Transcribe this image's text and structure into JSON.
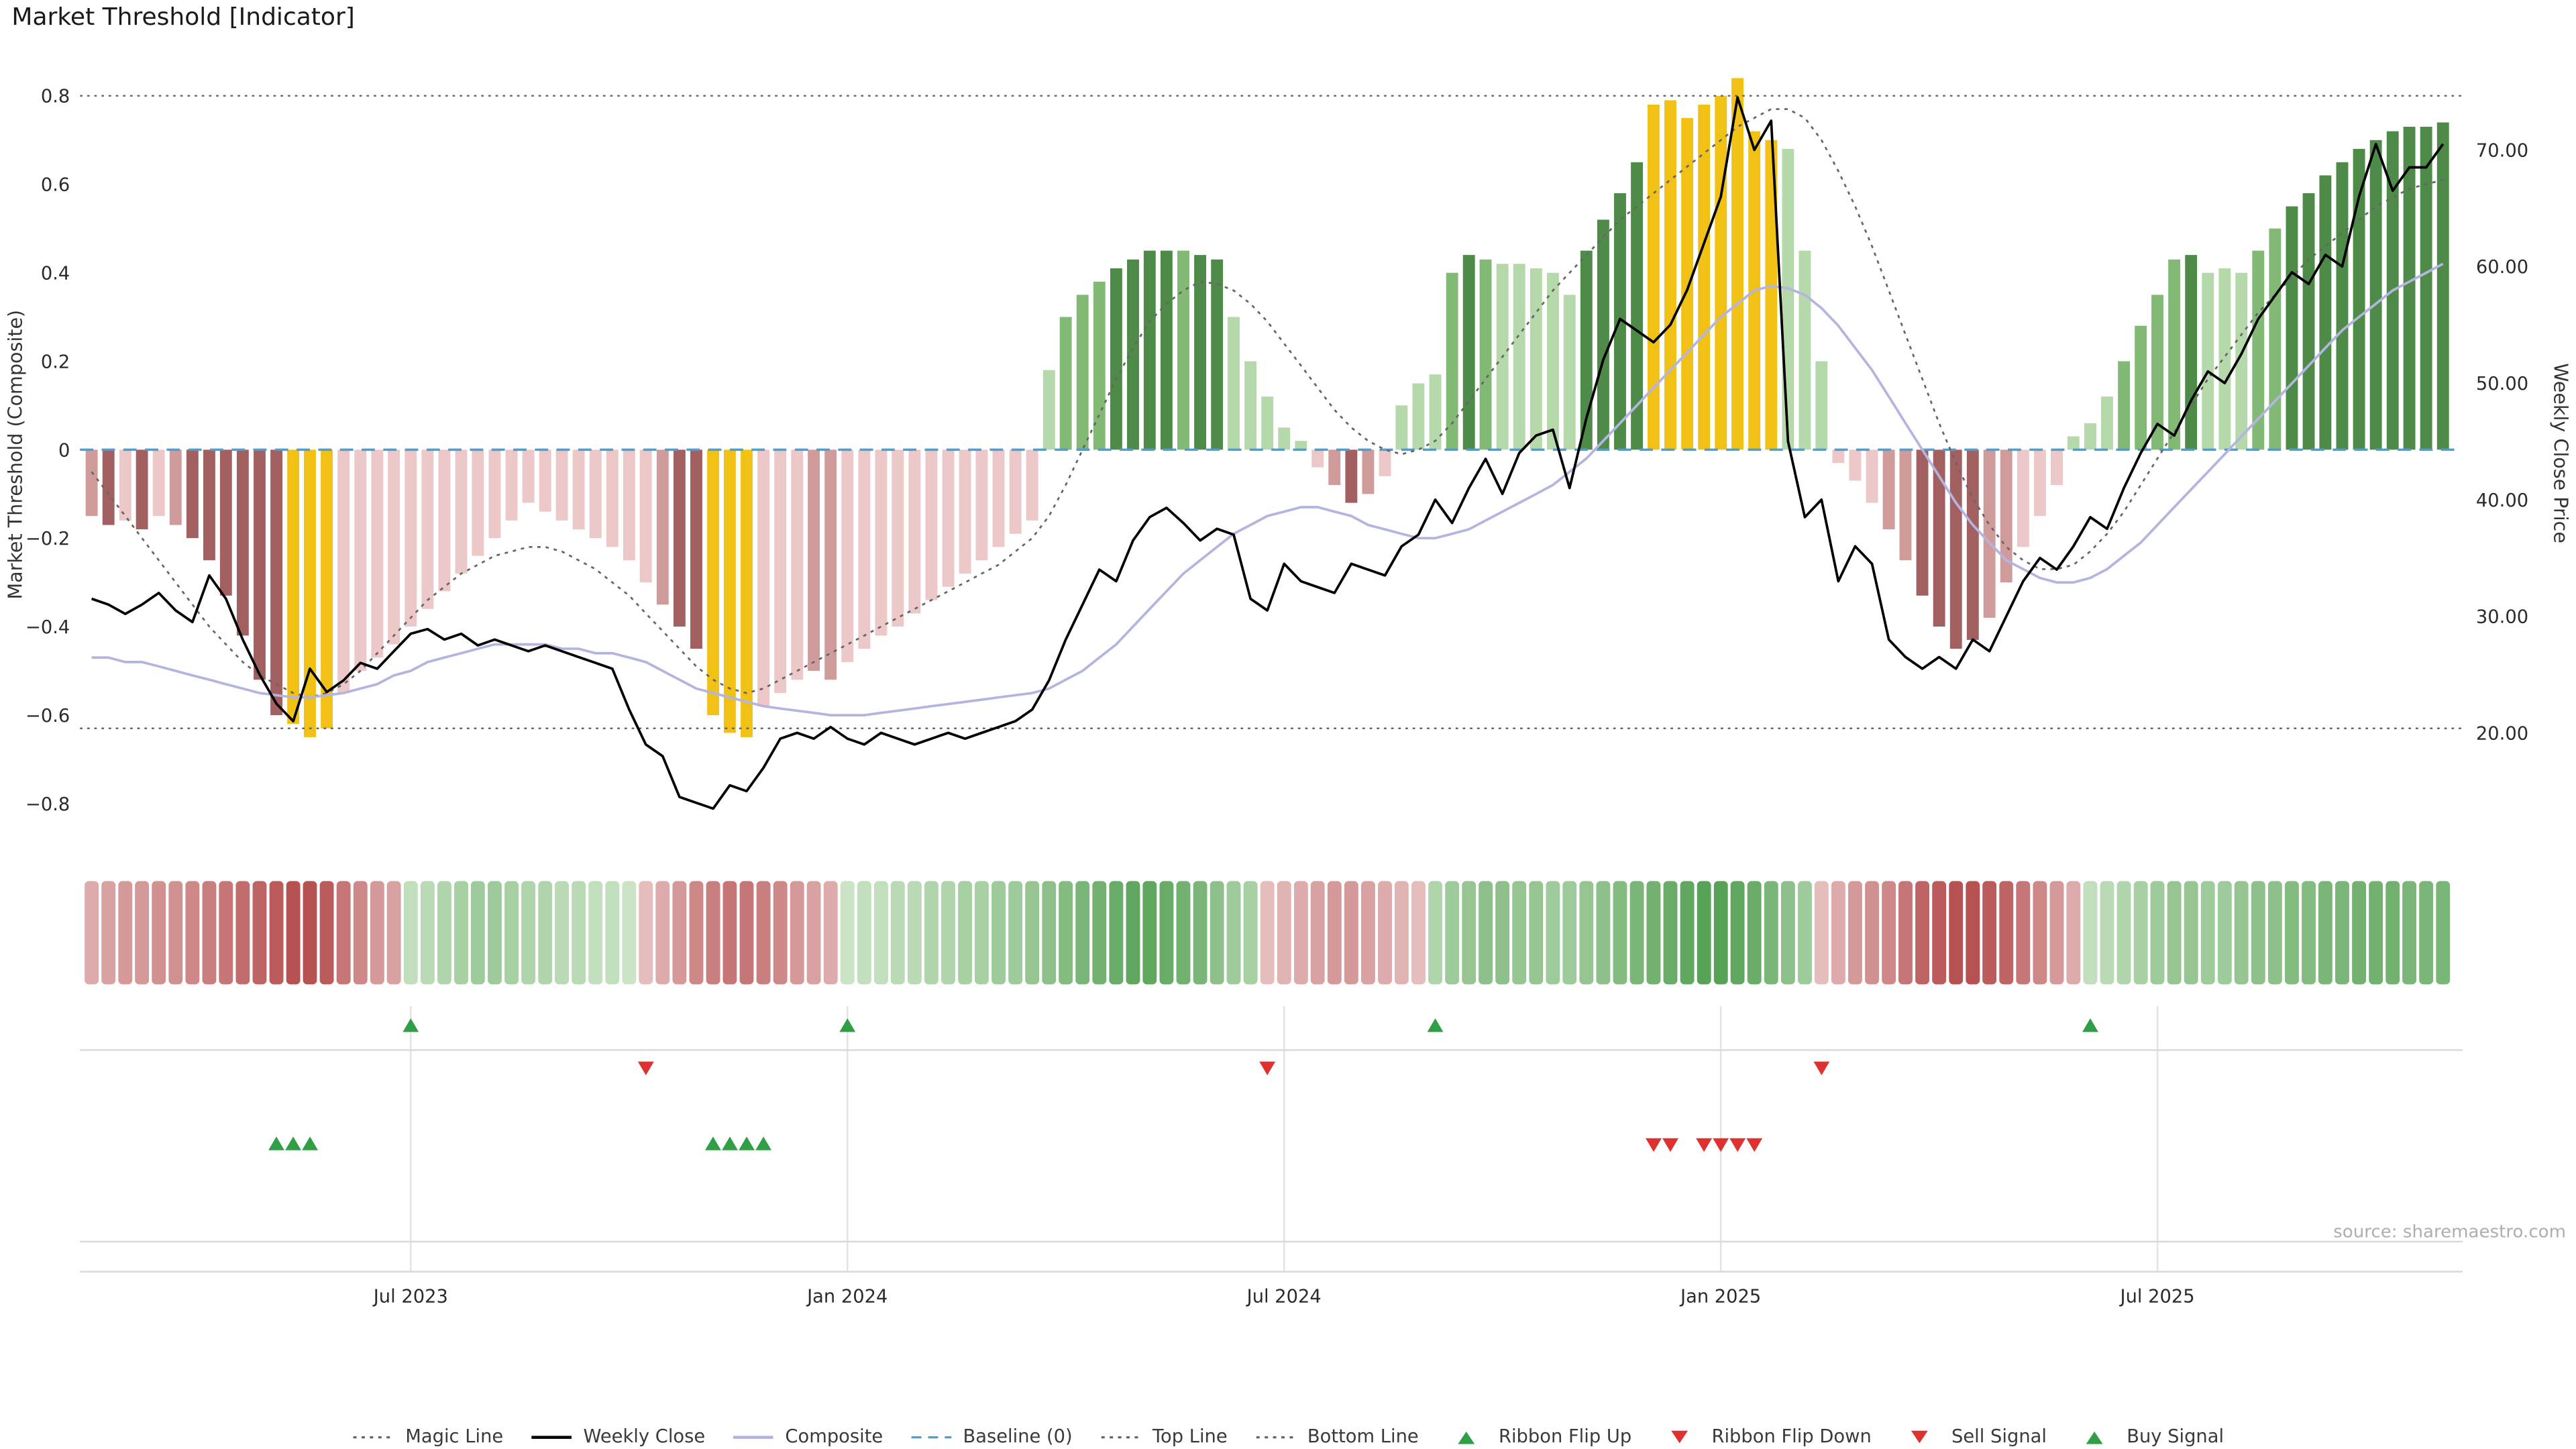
{
  "title": "Market Threshold [Indicator]",
  "source_note": "source: sharemaestro.com",
  "axes": {
    "left_label": "Market Threshold (Composite)",
    "right_label": "Weekly Close Price",
    "left_ticks": [
      {
        "v": 0.8,
        "label": "0.8"
      },
      {
        "v": 0.6,
        "label": "0.6"
      },
      {
        "v": 0.4,
        "label": "0.4"
      },
      {
        "v": 0.2,
        "label": "0.2"
      },
      {
        "v": 0.0,
        "label": "0"
      },
      {
        "v": -0.2,
        "label": "−0.2"
      },
      {
        "v": -0.4,
        "label": "−0.4"
      },
      {
        "v": -0.6,
        "label": "−0.6"
      },
      {
        "v": -0.8,
        "label": "−0.8"
      }
    ],
    "right_ticks": [
      {
        "v": 70,
        "label": "70.00"
      },
      {
        "v": 60,
        "label": "60.00"
      },
      {
        "v": 50,
        "label": "50.00"
      },
      {
        "v": 40,
        "label": "40.00"
      },
      {
        "v": 30,
        "label": "30.00"
      },
      {
        "v": 20,
        "label": "20.00"
      }
    ],
    "x_ticks": [
      {
        "week_index": 19,
        "label": "Jul 2023"
      },
      {
        "week_index": 45,
        "label": "Jan 2024"
      },
      {
        "week_index": 71,
        "label": "Jul 2024"
      },
      {
        "week_index": 97,
        "label": "Jan 2025"
      },
      {
        "week_index": 123,
        "label": "Jul 2025"
      }
    ]
  },
  "colors": {
    "bar_classes": {
      "dr": "#a26060",
      "mr": "#cf9b9b",
      "lr": "#ecc8c8",
      "y": "#f2c115",
      "lg": "#b5d9ab",
      "mg": "#82b974",
      "dg": "#4e8b49"
    },
    "magic_line": "#666666",
    "weekly_close": "#000000",
    "composite": "#b3b5e0",
    "baseline": "#4a9fd4",
    "top_line": "#666666",
    "bottom_line": "#666666",
    "signal_up": "#2f9e44",
    "signal_down": "#e03131",
    "ribbon_red_light": "#f0d8d8",
    "ribbon_red_dark": "#b75252",
    "ribbon_green_light": "#ddeed6",
    "ribbon_green_dark": "#57a257",
    "grid_line": "#d9d9d9",
    "tick_text": "#2b2b2b"
  },
  "chart_data": {
    "type": "mixed-bar-line",
    "frequency": "weekly",
    "n_weeks": 141,
    "left_axis_range": [
      -0.9,
      0.9
    ],
    "right_axis_range": [
      13,
      77
    ],
    "reference_lines": {
      "top_line": 0.8,
      "bottom_line": -0.63,
      "baseline": 0
    },
    "series": {
      "threshold_bars": {
        "name": "Market Threshold",
        "values": [
          -0.15,
          -0.17,
          -0.16,
          -0.18,
          -0.15,
          -0.17,
          -0.2,
          -0.25,
          -0.33,
          -0.42,
          -0.52,
          -0.6,
          -0.62,
          -0.65,
          -0.63,
          -0.55,
          -0.5,
          -0.47,
          -0.44,
          -0.4,
          -0.36,
          -0.32,
          -0.28,
          -0.24,
          -0.2,
          -0.16,
          -0.12,
          -0.14,
          -0.16,
          -0.18,
          -0.2,
          -0.22,
          -0.25,
          -0.3,
          -0.35,
          -0.4,
          -0.45,
          -0.6,
          -0.64,
          -0.65,
          -0.58,
          -0.55,
          -0.52,
          -0.5,
          -0.52,
          -0.48,
          -0.45,
          -0.42,
          -0.4,
          -0.37,
          -0.34,
          -0.31,
          -0.28,
          -0.25,
          -0.22,
          -0.19,
          -0.16,
          0.18,
          0.3,
          0.35,
          0.38,
          0.41,
          0.43,
          0.45,
          0.45,
          0.45,
          0.44,
          0.43,
          0.3,
          0.2,
          0.12,
          0.05,
          0.02,
          -0.04,
          -0.08,
          -0.12,
          -0.1,
          -0.06,
          0.1,
          0.15,
          0.17,
          0.4,
          0.44,
          0.43,
          0.42,
          0.42,
          0.41,
          0.4,
          0.35,
          0.45,
          0.52,
          0.58,
          0.65,
          0.78,
          0.79,
          0.75,
          0.78,
          0.8,
          0.84,
          0.72,
          0.7,
          0.68,
          0.45,
          0.2,
          -0.03,
          -0.07,
          -0.12,
          -0.18,
          -0.25,
          -0.33,
          -0.4,
          -0.45,
          -0.43,
          -0.38,
          -0.3,
          -0.22,
          -0.15,
          -0.08,
          0.03,
          0.06,
          0.12,
          0.2,
          0.28,
          0.35,
          0.43,
          0.44,
          0.4,
          0.41,
          0.4,
          0.45,
          0.5,
          0.55,
          0.58,
          0.62,
          0.65,
          0.68,
          0.7,
          0.72,
          0.73,
          0.73,
          0.74
        ],
        "color_class": [
          "mr",
          "dr",
          "lr",
          "dr",
          "lr",
          "mr",
          "dr",
          "dr",
          "dr",
          "dr",
          "dr",
          "dr",
          "y",
          "y",
          "y",
          "lr",
          "lr",
          "lr",
          "lr",
          "lr",
          "lr",
          "lr",
          "lr",
          "lr",
          "lr",
          "lr",
          "lr",
          "lr",
          "lr",
          "lr",
          "lr",
          "lr",
          "lr",
          "lr",
          "mr",
          "dr",
          "dr",
          "y",
          "y",
          "y",
          "lr",
          "lr",
          "lr",
          "mr",
          "mr",
          "lr",
          "lr",
          "lr",
          "lr",
          "lr",
          "lr",
          "lr",
          "lr",
          "lr",
          "lr",
          "lr",
          "lr",
          "lg",
          "mg",
          "mg",
          "mg",
          "dg",
          "dg",
          "dg",
          "dg",
          "mg",
          "dg",
          "dg",
          "lg",
          "lg",
          "lg",
          "lg",
          "lg",
          "lr",
          "mr",
          "dr",
          "mr",
          "lr",
          "lg",
          "lg",
          "lg",
          "mg",
          "dg",
          "mg",
          "lg",
          "lg",
          "lg",
          "lg",
          "lg",
          "dg",
          "dg",
          "dg",
          "dg",
          "y",
          "y",
          "y",
          "y",
          "y",
          "y",
          "y",
          "y",
          "lg",
          "lg",
          "lg",
          "lr",
          "lr",
          "lr",
          "mr",
          "mr",
          "dr",
          "dr",
          "dr",
          "dr",
          "mr",
          "mr",
          "lr",
          "lr",
          "lr",
          "lg",
          "lg",
          "lg",
          "mg",
          "mg",
          "mg",
          "mg",
          "dg",
          "lg",
          "lg",
          "lg",
          "mg",
          "mg",
          "dg",
          "dg",
          "dg",
          "dg",
          "dg",
          "dg",
          "dg",
          "dg",
          "dg",
          "dg"
        ]
      },
      "weekly_close": {
        "name": "Weekly Close",
        "values": [
          31.5,
          31.0,
          30.2,
          31.0,
          32.0,
          30.5,
          29.5,
          33.5,
          31.5,
          28.0,
          25.0,
          22.5,
          21.0,
          25.5,
          23.5,
          24.5,
          26.0,
          25.5,
          27.0,
          28.5,
          28.9,
          28.0,
          28.5,
          27.5,
          28.0,
          27.5,
          27.0,
          27.5,
          27.0,
          26.5,
          26.0,
          25.5,
          22.0,
          19.0,
          18.0,
          14.5,
          14.0,
          13.5,
          15.5,
          15.0,
          17.0,
          19.5,
          20.0,
          19.5,
          20.5,
          19.5,
          19.0,
          20.0,
          19.5,
          19.0,
          19.5,
          20.0,
          19.5,
          20.0,
          20.5,
          21.0,
          22.0,
          24.5,
          28.0,
          31.0,
          34.0,
          33.0,
          36.5,
          38.5,
          39.3,
          38.0,
          36.5,
          37.5,
          37.0,
          31.5,
          30.5,
          34.5,
          33.0,
          32.5,
          32.0,
          34.5,
          34.0,
          33.5,
          36.0,
          37.0,
          40.0,
          38.0,
          41.0,
          43.5,
          40.5,
          44.0,
          45.5,
          46.0,
          41.0,
          47.0,
          52.0,
          55.5,
          54.5,
          53.5,
          55.0,
          58.0,
          62.0,
          66.0,
          74.5,
          70.0,
          72.5,
          45.0,
          38.5,
          40.0,
          33.0,
          36.0,
          34.5,
          28.0,
          26.5,
          25.5,
          26.5,
          25.5,
          28.0,
          27.0,
          30.0,
          33.0,
          35.0,
          34.0,
          36.0,
          38.5,
          37.5,
          41.0,
          44.0,
          46.5,
          45.5,
          48.5,
          51.0,
          50.0,
          52.5,
          55.5,
          57.5,
          59.5,
          58.5,
          61.0,
          60.0,
          66.0,
          70.5,
          66.5,
          68.5,
          68.5,
          70.5
        ]
      },
      "composite": {
        "name": "Composite",
        "values": [
          -0.47,
          -0.47,
          -0.48,
          -0.48,
          -0.49,
          -0.5,
          -0.51,
          -0.52,
          -0.53,
          -0.54,
          -0.55,
          -0.555,
          -0.56,
          -0.56,
          -0.555,
          -0.55,
          -0.54,
          -0.53,
          -0.51,
          -0.5,
          -0.48,
          -0.47,
          -0.46,
          -0.45,
          -0.44,
          -0.44,
          -0.44,
          -0.44,
          -0.45,
          -0.45,
          -0.46,
          -0.46,
          -0.47,
          -0.48,
          -0.5,
          -0.52,
          -0.54,
          -0.55,
          -0.56,
          -0.57,
          -0.58,
          -0.585,
          -0.59,
          -0.595,
          -0.6,
          -0.6,
          -0.6,
          -0.595,
          -0.59,
          -0.585,
          -0.58,
          -0.575,
          -0.57,
          -0.565,
          -0.56,
          -0.555,
          -0.55,
          -0.54,
          -0.52,
          -0.5,
          -0.47,
          -0.44,
          -0.4,
          -0.36,
          -0.32,
          -0.28,
          -0.25,
          -0.22,
          -0.19,
          -0.17,
          -0.15,
          -0.14,
          -0.13,
          -0.13,
          -0.14,
          -0.15,
          -0.17,
          -0.18,
          -0.19,
          -0.2,
          -0.2,
          -0.19,
          -0.18,
          -0.16,
          -0.14,
          -0.12,
          -0.1,
          -0.08,
          -0.05,
          -0.02,
          0.02,
          0.06,
          0.1,
          0.14,
          0.18,
          0.22,
          0.26,
          0.3,
          0.33,
          0.36,
          0.37,
          0.365,
          0.35,
          0.32,
          0.28,
          0.23,
          0.18,
          0.12,
          0.06,
          0.0,
          -0.06,
          -0.12,
          -0.17,
          -0.21,
          -0.25,
          -0.27,
          -0.29,
          -0.3,
          -0.3,
          -0.29,
          -0.27,
          -0.24,
          -0.21,
          -0.17,
          -0.13,
          -0.09,
          -0.05,
          -0.01,
          0.03,
          0.07,
          0.11,
          0.15,
          0.19,
          0.23,
          0.27,
          0.3,
          0.33,
          0.36,
          0.38,
          0.4,
          0.42
        ]
      },
      "magic_line": {
        "name": "Magic Line",
        "values": [
          -0.05,
          -0.1,
          -0.15,
          -0.2,
          -0.25,
          -0.3,
          -0.35,
          -0.4,
          -0.44,
          -0.48,
          -0.51,
          -0.53,
          -0.55,
          -0.56,
          -0.55,
          -0.53,
          -0.5,
          -0.46,
          -0.42,
          -0.38,
          -0.34,
          -0.31,
          -0.28,
          -0.26,
          -0.24,
          -0.23,
          -0.22,
          -0.22,
          -0.23,
          -0.25,
          -0.27,
          -0.3,
          -0.33,
          -0.37,
          -0.41,
          -0.45,
          -0.49,
          -0.52,
          -0.54,
          -0.55,
          -0.54,
          -0.52,
          -0.5,
          -0.48,
          -0.46,
          -0.44,
          -0.42,
          -0.4,
          -0.38,
          -0.36,
          -0.34,
          -0.32,
          -0.3,
          -0.28,
          -0.26,
          -0.23,
          -0.2,
          -0.15,
          -0.08,
          0.0,
          0.08,
          0.16,
          0.23,
          0.29,
          0.33,
          0.36,
          0.38,
          0.375,
          0.36,
          0.33,
          0.29,
          0.24,
          0.19,
          0.14,
          0.09,
          0.05,
          0.02,
          0.0,
          -0.01,
          0.0,
          0.02,
          0.06,
          0.11,
          0.16,
          0.21,
          0.26,
          0.31,
          0.36,
          0.4,
          0.44,
          0.48,
          0.52,
          0.55,
          0.58,
          0.61,
          0.64,
          0.67,
          0.7,
          0.73,
          0.75,
          0.77,
          0.77,
          0.75,
          0.7,
          0.63,
          0.55,
          0.46,
          0.36,
          0.26,
          0.16,
          0.06,
          -0.03,
          -0.11,
          -0.17,
          -0.22,
          -0.25,
          -0.27,
          -0.27,
          -0.26,
          -0.23,
          -0.19,
          -0.14,
          -0.08,
          -0.02,
          0.04,
          0.1,
          0.16,
          0.21,
          0.26,
          0.31,
          0.35,
          0.39,
          0.43,
          0.46,
          0.49,
          0.52,
          0.55,
          0.57,
          0.59,
          0.6,
          0.61
        ]
      }
    },
    "ribbon": [
      -0.4,
      -0.45,
      -0.5,
      -0.5,
      -0.55,
      -0.55,
      -0.6,
      -0.65,
      -0.7,
      -0.75,
      -0.8,
      -0.85,
      -0.9,
      -0.9,
      -0.85,
      -0.7,
      -0.6,
      -0.5,
      -0.45,
      0.3,
      0.35,
      0.4,
      0.45,
      0.5,
      0.5,
      0.45,
      0.4,
      0.4,
      0.35,
      0.35,
      0.3,
      0.3,
      0.25,
      -0.3,
      -0.4,
      -0.5,
      -0.6,
      -0.65,
      -0.7,
      -0.7,
      -0.65,
      -0.6,
      -0.5,
      -0.45,
      -0.4,
      0.25,
      0.3,
      0.3,
      0.35,
      0.35,
      0.4,
      0.4,
      0.45,
      0.45,
      0.5,
      0.5,
      0.55,
      0.6,
      0.65,
      0.7,
      0.75,
      0.8,
      0.85,
      0.85,
      0.8,
      0.75,
      0.7,
      0.6,
      0.5,
      0.45,
      -0.3,
      -0.35,
      -0.4,
      -0.45,
      -0.5,
      -0.5,
      -0.45,
      -0.4,
      -0.35,
      -0.3,
      0.4,
      0.5,
      0.55,
      0.6,
      0.6,
      0.55,
      0.55,
      0.5,
      0.5,
      0.55,
      0.6,
      0.65,
      0.7,
      0.75,
      0.8,
      0.85,
      0.9,
      0.9,
      0.85,
      0.8,
      0.7,
      0.6,
      0.5,
      -0.3,
      -0.4,
      -0.5,
      -0.55,
      -0.6,
      -0.7,
      -0.8,
      -0.85,
      -0.9,
      -0.9,
      -0.85,
      -0.8,
      -0.7,
      -0.6,
      -0.5,
      -0.4,
      0.3,
      0.35,
      0.4,
      0.45,
      0.5,
      0.55,
      0.55,
      0.5,
      0.5,
      0.55,
      0.6,
      0.6,
      0.65,
      0.65,
      0.7,
      0.7,
      0.75,
      0.75,
      0.75,
      0.7,
      0.7,
      0.7
    ],
    "signals": {
      "ribbon_flip_up_weeks": [
        19,
        45,
        80,
        119
      ],
      "ribbon_flip_down_weeks": [
        33,
        70,
        103
      ],
      "buy_signal_weeks": [
        11,
        12,
        13,
        37,
        38,
        39,
        40
      ],
      "sell_signal_weeks": [
        93,
        94,
        96,
        97,
        98,
        99
      ]
    }
  },
  "legend": {
    "items": [
      {
        "label": "Magic Line",
        "icon": "dotted-line",
        "color": "#666666"
      },
      {
        "label": "Weekly Close",
        "icon": "solid-line",
        "color": "#000000"
      },
      {
        "label": "Composite",
        "icon": "solid-line",
        "color": "#b3b5e0"
      },
      {
        "label": "Baseline (0)",
        "icon": "dashed-line",
        "color": "#4a9fd4"
      },
      {
        "label": "Top Line",
        "icon": "dotted-line",
        "color": "#666666"
      },
      {
        "label": "Bottom Line",
        "icon": "dotted-line",
        "color": "#666666"
      },
      {
        "label": "Ribbon Flip Up",
        "icon": "tri-up",
        "color": "#2f9e44"
      },
      {
        "label": "Ribbon Flip Down",
        "icon": "tri-down",
        "color": "#e03131"
      },
      {
        "label": "Sell Signal",
        "icon": "tri-down",
        "color": "#e03131"
      },
      {
        "label": "Buy Signal",
        "icon": "tri-up",
        "color": "#2f9e44"
      }
    ]
  }
}
